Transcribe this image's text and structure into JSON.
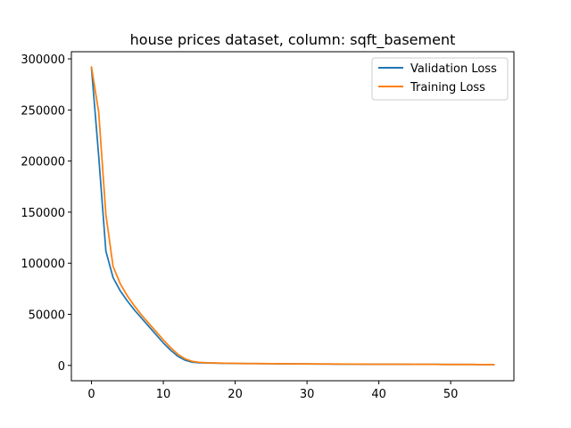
{
  "chart_data": {
    "type": "line",
    "title": "house prices dataset, column: sqft_basement",
    "xlabel": "",
    "ylabel": "",
    "xlim": [
      -2.8,
      58.8
    ],
    "ylim": [
      -15000,
      307000
    ],
    "x_ticks": [
      0,
      10,
      20,
      30,
      40,
      50
    ],
    "y_ticks": [
      0,
      50000,
      100000,
      150000,
      200000,
      250000,
      300000
    ],
    "grid": false,
    "legend_position": "upper right",
    "series": [
      {
        "name": "Validation Loss",
        "color": "#1f77b4",
        "x": [
          0,
          1,
          2,
          3,
          4,
          5,
          6,
          7,
          8,
          9,
          10,
          11,
          12,
          13,
          14,
          15,
          16,
          17,
          18,
          19,
          20,
          21,
          22,
          23,
          24,
          25,
          26,
          27,
          28,
          29,
          30,
          31,
          32,
          33,
          34,
          35,
          36,
          37,
          38,
          39,
          40,
          41,
          42,
          43,
          44,
          45,
          46,
          47,
          48,
          49,
          50,
          51,
          52,
          53,
          54,
          55,
          56
        ],
        "values": [
          291000,
          205000,
          112000,
          86000,
          73000,
          63000,
          54000,
          46000,
          38000,
          30000,
          22000,
          15000,
          9000,
          5200,
          3200,
          2600,
          2400,
          2200,
          2100,
          2000,
          1900,
          1850,
          1800,
          1750,
          1700,
          1650,
          1600,
          1550,
          1500,
          1500,
          1450,
          1400,
          1400,
          1350,
          1300,
          1300,
          1250,
          1250,
          1200,
          1200,
          1150,
          1150,
          1100,
          1100,
          1050,
          1050,
          1000,
          1000,
          1000,
          950,
          950,
          900,
          900,
          900,
          850,
          850,
          850
        ]
      },
      {
        "name": "Training Loss",
        "color": "#ff7f0e",
        "x": [
          0,
          1,
          2,
          3,
          4,
          5,
          6,
          7,
          8,
          9,
          10,
          11,
          12,
          13,
          14,
          15,
          16,
          17,
          18,
          19,
          20,
          21,
          22,
          23,
          24,
          25,
          26,
          27,
          28,
          29,
          30,
          31,
          32,
          33,
          34,
          35,
          36,
          37,
          38,
          39,
          40,
          41,
          42,
          43,
          44,
          45,
          46,
          47,
          48,
          49,
          50,
          51,
          52,
          53,
          54,
          55,
          56
        ],
        "values": [
          292000,
          248000,
          148000,
          97000,
          80000,
          68000,
          58000,
          49000,
          41000,
          33000,
          25000,
          17500,
          11000,
          6500,
          4000,
          3000,
          2600,
          2400,
          2200,
          2100,
          2000,
          1900,
          1850,
          1800,
          1750,
          1700,
          1650,
          1600,
          1550,
          1500,
          1500,
          1450,
          1400,
          1400,
          1350,
          1300,
          1300,
          1250,
          1250,
          1200,
          1200,
          1150,
          1150,
          1100,
          1100,
          1050,
          1050,
          1000,
          1000,
          950,
          950,
          900,
          900,
          900,
          850,
          850,
          850
        ]
      }
    ]
  }
}
